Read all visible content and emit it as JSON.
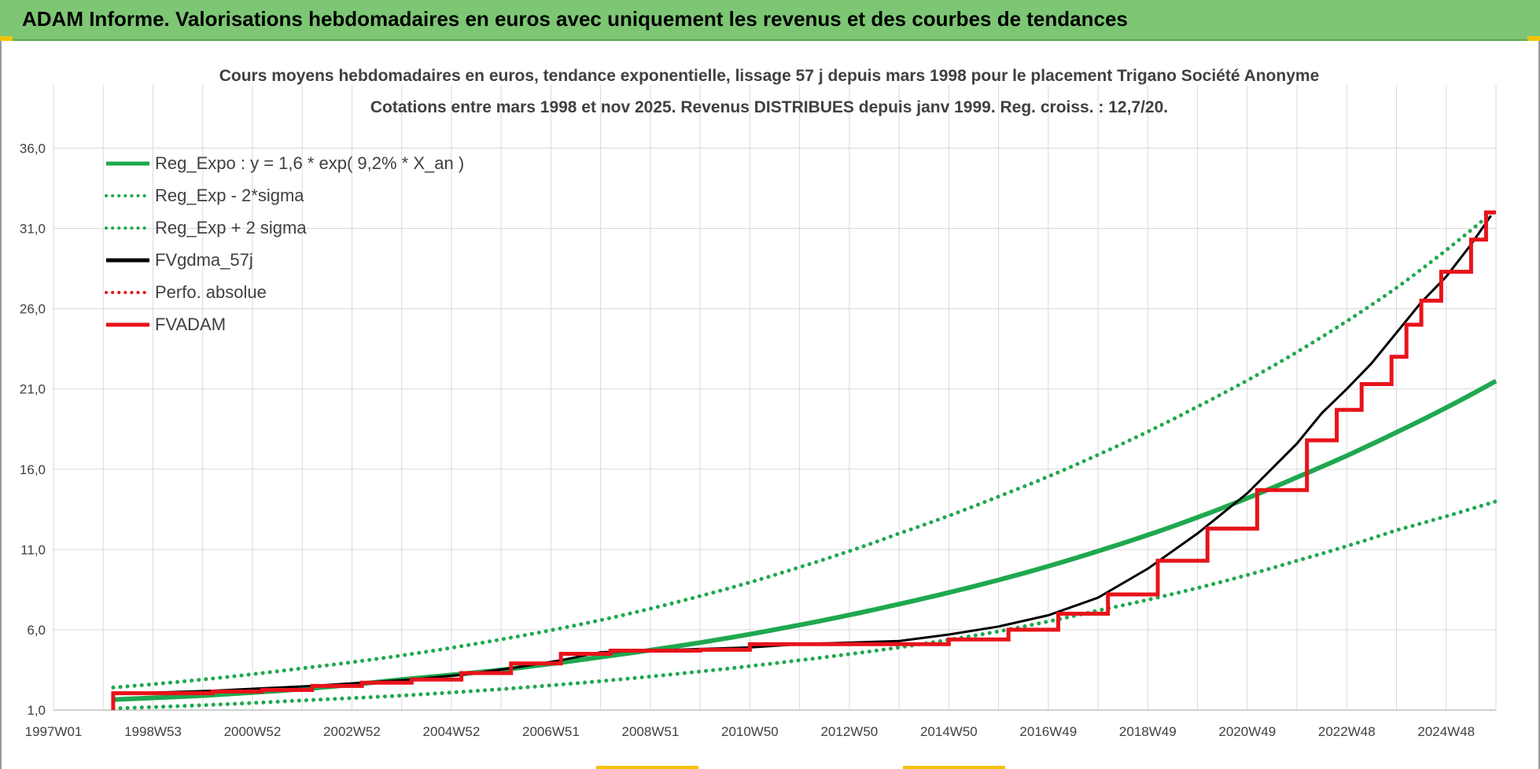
{
  "banner": {
    "title": "ADAM Informe. Valorisations hebdomadaires en euros avec uniquement les revenus et des courbes de tendances"
  },
  "colors": {
    "banner_bg": "#7cc674",
    "reg_green": "#1fa84f",
    "fvadam_red": "#e8131b",
    "fvgdma_black": "#000000",
    "grid": "#d9d9d9"
  },
  "chart_data": {
    "type": "line",
    "title_line1": "Cours moyens hebdomadaires en euros, tendance exponentielle, lissage 57 j depuis mars 1998 pour le placement Trigano Société Anonyme",
    "title_line2": "Cotations entre mars 1998 et nov 2025. Revenus DISTRIBUES depuis janv 1999. Reg. croiss. : 12,7/20.",
    "xlabel": "",
    "ylabel": "",
    "x_tick_labels": [
      "1997W01",
      "1998W53",
      "2000W52",
      "2002W52",
      "2004W52",
      "2006W51",
      "2008W51",
      "2010W50",
      "2012W50",
      "2014W50",
      "2016W49",
      "2018W49",
      "2020W49",
      "2022W48",
      "2024W48"
    ],
    "x_tick_years": [
      1997.0,
      1999.0,
      2001.0,
      2003.0,
      2005.0,
      2007.0,
      2009.0,
      2011.0,
      2013.0,
      2015.0,
      2017.0,
      2019.0,
      2021.0,
      2023.0,
      2025.0
    ],
    "xlim": [
      1997.0,
      2026.0
    ],
    "y_ticks": [
      1,
      6,
      11,
      16,
      21,
      26,
      31,
      36
    ],
    "y_tick_labels": [
      "1,0",
      "6,0",
      "11,0",
      "16,0",
      "21,0",
      "26,0",
      "31,0",
      "36,0"
    ],
    "ylim": [
      1,
      37
    ],
    "legend_position": "top-left",
    "legend": [
      {
        "label": "Reg_Expo : y = 1,6 * exp( 9,2% *  X_an )",
        "style": "solid",
        "color": "#1fa84f"
      },
      {
        "label": "Reg_Exp - 2*sigma",
        "style": "dotted",
        "color": "#1fa84f"
      },
      {
        "label": "Reg_Exp + 2 sigma",
        "style": "dotted",
        "color": "#1fa84f"
      },
      {
        "label": "FVgdma_57j",
        "style": "solid",
        "color": "#000000"
      },
      {
        "label": "Perfo. absolue",
        "style": "dotted",
        "color": "#e8131b"
      },
      {
        "label": "FVADAM",
        "style": "solid",
        "color": "#e8131b"
      }
    ],
    "series": [
      {
        "name": "Reg_Expo : y = 1,6 * exp( 9,2% *  X_an )",
        "x": [
          1998.2,
          2000.0,
          2002.0,
          2004.0,
          2006.0,
          2008.0,
          2010.0,
          2012.0,
          2014.0,
          2016.0,
          2018.0,
          2020.0,
          2022.0,
          2024.0,
          2026.0
        ],
        "values": [
          1.65,
          1.9,
          2.3,
          2.9,
          3.5,
          4.3,
          5.2,
          6.3,
          7.6,
          9.1,
          10.9,
          13.0,
          15.5,
          18.3,
          21.5
        ]
      },
      {
        "name": "Reg_Exp - 2*sigma",
        "x": [
          1998.2,
          2000.0,
          2002.0,
          2004.0,
          2006.0,
          2008.0,
          2010.0,
          2012.0,
          2014.0,
          2016.0,
          2018.0,
          2020.0,
          2022.0,
          2024.0,
          2026.0
        ],
        "values": [
          1.1,
          1.3,
          1.6,
          1.9,
          2.3,
          2.8,
          3.4,
          4.1,
          4.9,
          5.9,
          7.2,
          8.6,
          10.3,
          12.2,
          14.0
        ]
      },
      {
        "name": "Reg_Exp + 2 sigma",
        "x": [
          1998.2,
          2000.0,
          2002.0,
          2004.0,
          2006.0,
          2008.0,
          2010.0,
          2012.0,
          2014.0,
          2016.0,
          2018.0,
          2020.0,
          2022.0,
          2024.0,
          2026.0
        ],
        "values": [
          2.4,
          2.9,
          3.6,
          4.4,
          5.4,
          6.6,
          8.1,
          9.9,
          12.0,
          14.3,
          16.9,
          19.9,
          23.3,
          27.3,
          32.2
        ]
      },
      {
        "name": "FVgdma_57j",
        "x": [
          1998.2,
          1999.2,
          2000.2,
          2001.2,
          2002.2,
          2003.2,
          2004.2,
          2005.2,
          2006.2,
          2007.2,
          2008.0,
          2010.0,
          2011.0,
          2012.0,
          2014.0,
          2015.0,
          2016.0,
          2017.0,
          2018.0,
          2019.0,
          2020.0,
          2021.0,
          2022.0,
          2022.5,
          2023.0,
          2023.5,
          2024.0,
          2024.5,
          2025.0,
          2025.5,
          2025.9
        ],
        "values": [
          2.0,
          2.1,
          2.2,
          2.35,
          2.5,
          2.7,
          2.9,
          3.2,
          3.6,
          4.1,
          4.6,
          4.8,
          4.9,
          5.1,
          5.3,
          5.7,
          6.2,
          6.9,
          8.0,
          9.8,
          12.0,
          14.5,
          17.6,
          19.5,
          21.0,
          22.6,
          24.5,
          26.4,
          28.0,
          30.0,
          31.8
        ]
      },
      {
        "name": "FVADAM",
        "steps": [
          {
            "x_start": 1998.2,
            "x_end": 2000.2,
            "y": 2.05
          },
          {
            "x_start": 2000.2,
            "x_end": 2001.2,
            "y": 2.15
          },
          {
            "x_start": 2001.2,
            "x_end": 2002.2,
            "y": 2.25
          },
          {
            "x_start": 2002.2,
            "x_end": 2003.2,
            "y": 2.5
          },
          {
            "x_start": 2003.2,
            "x_end": 2004.2,
            "y": 2.7
          },
          {
            "x_start": 2004.2,
            "x_end": 2005.2,
            "y": 2.9
          },
          {
            "x_start": 2005.2,
            "x_end": 2006.2,
            "y": 3.3
          },
          {
            "x_start": 2006.2,
            "x_end": 2007.2,
            "y": 3.9
          },
          {
            "x_start": 2007.2,
            "x_end": 2008.2,
            "y": 4.5
          },
          {
            "x_start": 2008.2,
            "x_end": 2010.0,
            "y": 4.7
          },
          {
            "x_start": 2010.0,
            "x_end": 2011.0,
            "y": 4.75
          },
          {
            "x_start": 2011.0,
            "x_end": 2015.0,
            "y": 5.1
          },
          {
            "x_start": 2015.0,
            "x_end": 2016.2,
            "y": 5.4
          },
          {
            "x_start": 2016.2,
            "x_end": 2017.2,
            "y": 6.0
          },
          {
            "x_start": 2017.2,
            "x_end": 2018.2,
            "y": 7.0
          },
          {
            "x_start": 2018.2,
            "x_end": 2019.2,
            "y": 8.2
          },
          {
            "x_start": 2019.2,
            "x_end": 2020.2,
            "y": 10.3
          },
          {
            "x_start": 2020.2,
            "x_end": 2021.2,
            "y": 12.3
          },
          {
            "x_start": 2021.2,
            "x_end": 2022.2,
            "y": 14.7
          },
          {
            "x_start": 2022.2,
            "x_end": 2022.8,
            "y": 17.8
          },
          {
            "x_start": 2022.8,
            "x_end": 2023.3,
            "y": 19.7
          },
          {
            "x_start": 2023.3,
            "x_end": 2023.9,
            "y": 21.3
          },
          {
            "x_start": 2023.9,
            "x_end": 2024.2,
            "y": 23.0
          },
          {
            "x_start": 2024.2,
            "x_end": 2024.5,
            "y": 25.0
          },
          {
            "x_start": 2024.5,
            "x_end": 2024.9,
            "y": 26.5
          },
          {
            "x_start": 2024.9,
            "x_end": 2025.5,
            "y": 28.3
          },
          {
            "x_start": 2025.5,
            "x_end": 2025.8,
            "y": 30.3
          },
          {
            "x_start": 2025.8,
            "x_end": 2026.0,
            "y": 32.0
          }
        ]
      }
    ]
  }
}
